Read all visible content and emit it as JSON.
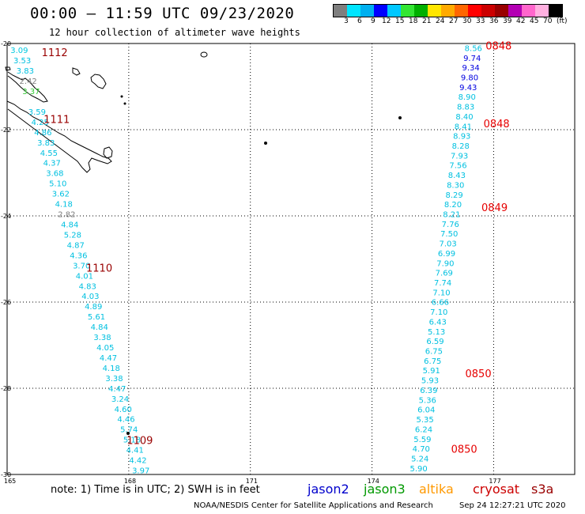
{
  "header": {
    "title": "00:00 – 11:59 UTC 09/23/2020",
    "subtitle": "12 hour collection of altimeter wave heights"
  },
  "colorbar": {
    "labels": [
      "3",
      "6",
      "9",
      "12",
      "15",
      "18",
      "21",
      "24",
      "27",
      "30",
      "33",
      "36",
      "39",
      "42",
      "45",
      "70"
    ],
    "unit": "(ft)",
    "colors": [
      "#7f7f7f",
      "#00e5ff",
      "#00b0f0",
      "#0000ff",
      "#00c8ff",
      "#33e633",
      "#00b000",
      "#ffe600",
      "#ffaa00",
      "#ff6600",
      "#ff0000",
      "#cc0000",
      "#990000",
      "#b300b3",
      "#ff66cc",
      "#ffb0e0",
      "#000000"
    ]
  },
  "map": {
    "lat_labels": [
      "-20",
      "-22",
      "-24",
      "-26",
      "-28",
      "-30"
    ],
    "lon_labels": [
      "165",
      "168",
      "171",
      "174",
      "177"
    ],
    "lat_values": [
      -20,
      -22,
      -24,
      -26,
      -28,
      -30
    ],
    "lon_values": [
      165,
      168,
      171,
      174,
      177
    ]
  },
  "tracks": [
    {
      "id": "left",
      "lon_start": 165.3,
      "lat_start": -20.15,
      "lon_end": 168.3,
      "lat_end": -29.9,
      "values": [
        "3.09",
        "3.53",
        "3.83",
        "2.42",
        "3.37",
        "",
        "3.59",
        "4.25",
        "4.86",
        "3.83",
        "4.55",
        "4.37",
        "3.68",
        "5.10",
        "3.62",
        "4.18",
        "2.82",
        "4.84",
        "5.28",
        "4.87",
        "4.36",
        "3.70",
        "4.01",
        "4.83",
        "4.03",
        "4.89",
        "5.61",
        "4.84",
        "3.38",
        "4.05",
        "4.47",
        "4.18",
        "3.38",
        "4.47",
        "3.24",
        "4.60",
        "4.46",
        "5.74",
        "5.18",
        "4.41",
        "4.42",
        "3.97"
      ],
      "colors": {
        "3.09": "#00c8e0",
        "2.42": "#7f7f7f",
        "2.82": "#7f7f7f",
        "3.37": "#33cc33"
      },
      "times": [
        {
          "label": "1112",
          "lon": 165.85,
          "lat": -20.2
        },
        {
          "label": "1111",
          "lon": 165.9,
          "lat": -21.75
        },
        {
          "label": "1110",
          "lon": 166.95,
          "lat": -25.2
        },
        {
          "label": "1109",
          "lon": 167.95,
          "lat": -29.2
        }
      ]
    },
    {
      "id": "right",
      "lon_start": 176.5,
      "lat_start": -20.1,
      "lon_end": 175.15,
      "lat_end": -29.85,
      "values": [
        "8.56",
        "9.74",
        "9.34",
        "9.80",
        "9.43",
        "8.90",
        "8.83",
        "8.40",
        "8.41",
        "8.93",
        "8.28",
        "7.93",
        "7.56",
        "8.43",
        "8.30",
        "8.29",
        "8.20",
        "8.21",
        "7.76",
        "7.50",
        "7.03",
        "6.99",
        "7.90",
        "7.69",
        "7.74",
        "7.10",
        "6.66",
        "7.10",
        "6.43",
        "5.13",
        "6.59",
        "6.75",
        "6.75",
        "5.91",
        "5.93",
        "6.39",
        "5.36",
        "6.04",
        "5.35",
        "6.24",
        "5.59",
        "4.70",
        "5.24",
        "5.90"
      ],
      "colors": {
        "9.74": "#0000e0",
        "9.34": "#0000e0",
        "9.80": "#0000e0",
        "9.43": "#0000e0"
      },
      "times": [
        {
          "label": "0848",
          "lon": 176.8,
          "lat": -20.05
        },
        {
          "label": "0848",
          "lon": 176.75,
          "lat": -21.85
        },
        {
          "label": "0849",
          "lon": 176.7,
          "lat": -23.8
        },
        {
          "label": "0850",
          "lon": 176.3,
          "lat": -27.65
        },
        {
          "label": "0850",
          "lon": 175.95,
          "lat": -29.4
        }
      ]
    }
  ],
  "footer": {
    "note": "note: 1) Time is in UTC; 2) SWH is in feet",
    "satellites": [
      {
        "name": "jason2",
        "color": "#0000cc"
      },
      {
        "name": "jason3",
        "color": "#009900"
      },
      {
        "name": "altika",
        "color": "#ff9900"
      },
      {
        "name": "cryosat",
        "color": "#cc0000"
      },
      {
        "name": "s3a",
        "color": "#990000"
      }
    ],
    "credit": "NOAA/NESDIS Center for Satellite Applications and Research",
    "timestamp": "Sep 24 12:27:21 UTC 2020"
  }
}
